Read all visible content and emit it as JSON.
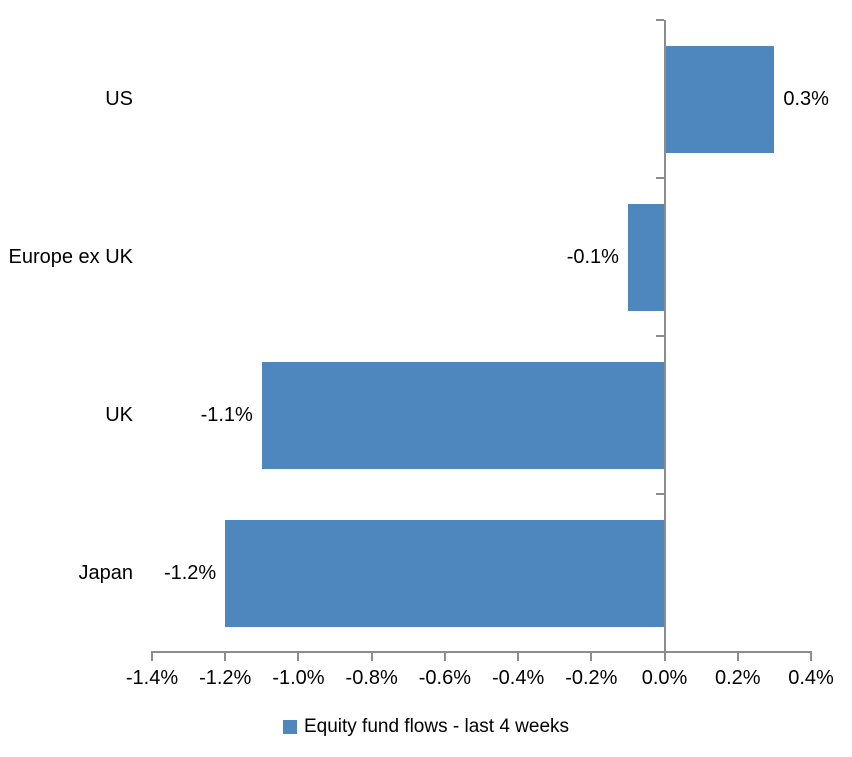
{
  "chart_data": {
    "type": "bar",
    "orientation": "horizontal",
    "title": "",
    "categories": [
      "US",
      "Europe ex UK",
      "UK",
      "Japan"
    ],
    "values": [
      0.3,
      -0.1,
      -1.1,
      -1.2
    ],
    "data_labels": [
      "0.3%",
      "-0.1%",
      "-1.1%",
      "-1.2%"
    ],
    "series": [
      {
        "name": "Equity fund flows - last 4 weeks",
        "values": [
          0.3,
          -0.1,
          -1.1,
          -1.2
        ]
      }
    ],
    "xlabel": "",
    "ylabel": "",
    "xlim": [
      -1.4,
      0.4
    ],
    "x_tick_values": [
      -1.4,
      -1.2,
      -1.0,
      -0.8,
      -0.6,
      -0.4,
      -0.2,
      0.0,
      0.2,
      0.4
    ],
    "x_tick_labels": [
      "-1.4%",
      "-1.2%",
      "-1.0%",
      "-0.8%",
      "-0.6%",
      "-0.4%",
      "-0.2%",
      "0.0%",
      "0.2%",
      "0.4%"
    ],
    "grid": false,
    "legend_position": "bottom",
    "bar_color": "#4E87BE",
    "axis_color": "#8C8C8C",
    "text_color": "#000000",
    "background_color": "#FFFFFF"
  },
  "legend": {
    "label": "Equity fund flows - last 4 weeks",
    "marker_color": "#4E87BE"
  }
}
